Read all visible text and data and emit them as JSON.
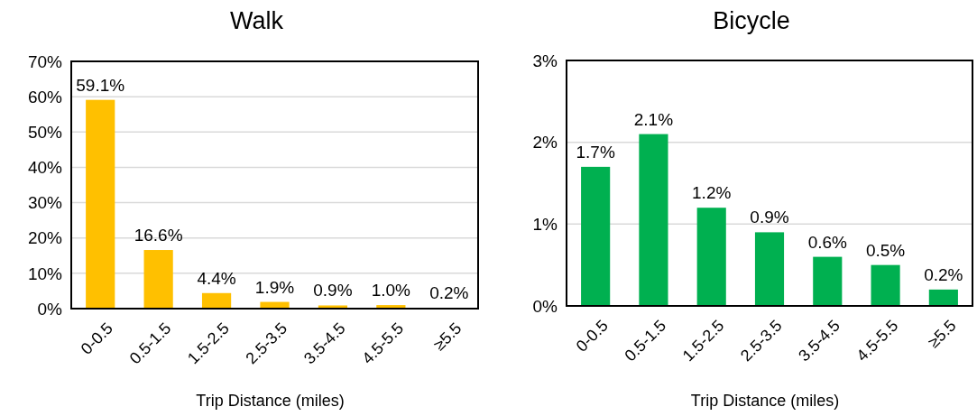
{
  "chart_data": [
    {
      "type": "bar",
      "title": "Walk",
      "xlabel": "Trip Distance (miles)",
      "categories": [
        "0-0.5",
        "0.5-1.5",
        "1.5-2.5",
        "2.5-3.5",
        "3.5-4.5",
        "4.5-5.5",
        "≥5.5"
      ],
      "values": [
        59.1,
        16.6,
        4.4,
        1.9,
        0.9,
        1.0,
        0.2
      ],
      "value_labels": [
        "59.1%",
        "16.6%",
        "4.4%",
        "1.9%",
        "0.9%",
        "1.0%",
        "0.2%"
      ],
      "color": "#ffc000",
      "ylim": [
        0,
        70
      ],
      "yticks": [
        {
          "value": 0,
          "label": "0%"
        },
        {
          "value": 10,
          "label": "10%"
        },
        {
          "value": 20,
          "label": "20%"
        },
        {
          "value": 30,
          "label": "30%"
        },
        {
          "value": 40,
          "label": "40%"
        },
        {
          "value": 50,
          "label": "50%"
        },
        {
          "value": 60,
          "label": "60%"
        },
        {
          "value": 70,
          "label": "70%"
        }
      ],
      "grid": "y"
    },
    {
      "type": "bar",
      "title": "Bicycle",
      "xlabel": "Trip Distance (miles)",
      "categories": [
        "0-0.5",
        "0.5-1.5",
        "1.5-2.5",
        "2.5-3.5",
        "3.5-4.5",
        "4.5-5.5",
        "≥5.5"
      ],
      "values": [
        1.7,
        2.1,
        1.2,
        0.9,
        0.6,
        0.5,
        0.2
      ],
      "value_labels": [
        "1.7%",
        "2.1%",
        "1.2%",
        "0.9%",
        "0.6%",
        "0.5%",
        "0.2%"
      ],
      "color": "#00b050",
      "ylim": [
        0,
        3
      ],
      "yticks": [
        {
          "value": 0,
          "label": "0%"
        },
        {
          "value": 1,
          "label": "1%"
        },
        {
          "value": 2,
          "label": "2%"
        },
        {
          "value": 3,
          "label": "3%"
        }
      ],
      "grid": "y"
    }
  ]
}
